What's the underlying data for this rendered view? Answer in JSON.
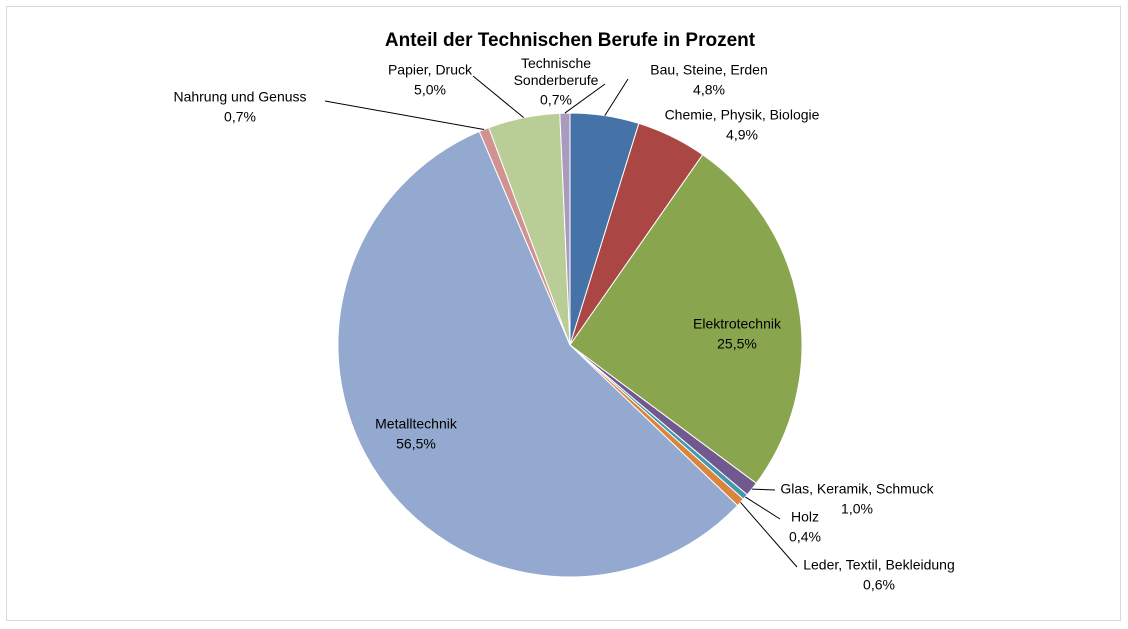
{
  "chart_data": {
    "type": "pie",
    "title": "Anteil der Technischen Berufe in Prozent",
    "categories": [
      "Bau, Steine, Erden",
      "Chemie, Physik, Biologie",
      "Elektrotechnik",
      "Glas, Keramik, Schmuck",
      "Holz",
      "Leder, Textil, Bekleidung",
      "Metalltechnik",
      "Nahrung und Genuss",
      "Papier, Druck",
      "Technische Sonderberufe"
    ],
    "values": [
      4.8,
      4.9,
      25.5,
      1.0,
      0.4,
      0.6,
      56.5,
      0.7,
      5.0,
      0.7
    ],
    "value_labels": [
      "4,8%",
      "4,9%",
      "25,5%",
      "1,0%",
      "0,4%",
      "0,6%",
      "56,5%",
      "0,7%",
      "5,0%",
      "0,7%"
    ],
    "colors": [
      "#4572a7",
      "#aa4643",
      "#89a54e",
      "#71588f",
      "#4198af",
      "#db843d",
      "#93a9cf",
      "#d19392",
      "#b9cd96",
      "#a99bbd"
    ]
  }
}
